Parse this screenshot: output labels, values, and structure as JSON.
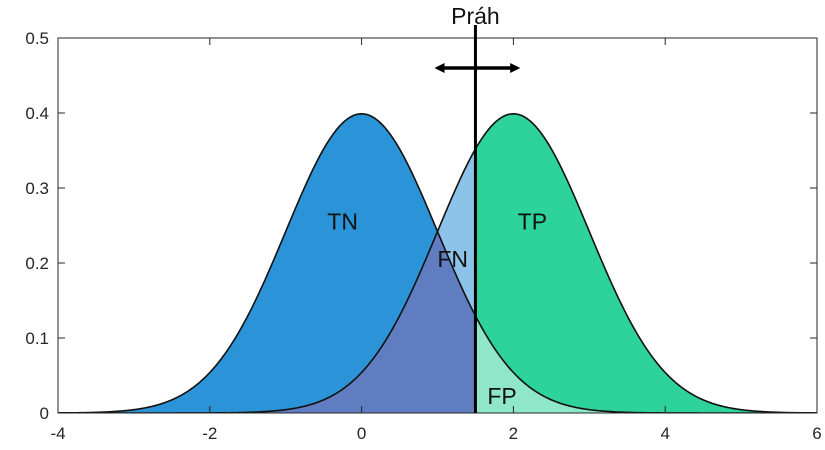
{
  "chart_data": {
    "type": "area",
    "title": "",
    "xlabel": "",
    "ylabel": "",
    "xlim": [
      -4,
      6
    ],
    "ylim": [
      0,
      0.5
    ],
    "grid": false,
    "x_ticks": [
      "-4",
      "-2",
      "0",
      "2",
      "4",
      "6"
    ],
    "x_tick_values": [
      -4,
      -2,
      0,
      2,
      4,
      6
    ],
    "y_ticks": [
      "0",
      "0.1",
      "0.2",
      "0.3",
      "0.4",
      "0.5"
    ],
    "y_tick_values": [
      0,
      0.1,
      0.2,
      0.3,
      0.4,
      0.5
    ],
    "distributions": [
      {
        "kind": "normal",
        "mean": 0,
        "sd": 1,
        "color": "#2b93d8"
      },
      {
        "kind": "normal",
        "mean": 2,
        "sd": 1,
        "color": "#2ed39b"
      }
    ],
    "threshold": {
      "x": 1.5,
      "label": "Práh"
    },
    "regions": [
      {
        "label": "TN",
        "x": -0.25,
        "y": 0.245
      },
      {
        "label": "FN",
        "x": 1.2,
        "y": 0.195
      },
      {
        "label": "TP",
        "x": 2.25,
        "y": 0.245
      },
      {
        "label": "FP",
        "x": 1.85,
        "y": 0.012
      }
    ],
    "region_colors": {
      "TN": "#2b93d8",
      "TP": "#2ed39b",
      "FN_overlap": "#607dc2",
      "negative_tail_right": "#8ec3e9",
      "positive_tail_left": "#8fe6c8"
    },
    "arrow": {
      "direction": "left-right",
      "x_from": 1.0,
      "x_to": 2.05,
      "y": 0.46
    }
  }
}
